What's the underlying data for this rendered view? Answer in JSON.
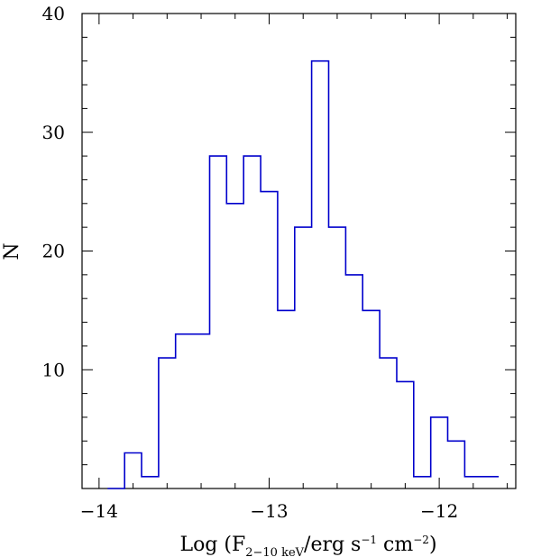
{
  "chart_data": {
    "type": "bar",
    "style": "step-histogram",
    "line_color": "#0000cc",
    "frame_color": "#000000",
    "bin_width": 0.1,
    "bin_left_edges": [
      -13.95,
      -13.85,
      -13.75,
      -13.65,
      -13.55,
      -13.45,
      -13.35,
      -13.25,
      -13.15,
      -13.05,
      -12.95,
      -12.85,
      -12.75,
      -12.65,
      -12.55,
      -12.45,
      -12.35,
      -12.25,
      -12.15,
      -12.05,
      -11.95,
      -11.85,
      -11.75
    ],
    "values": [
      0,
      3,
      1,
      11,
      13,
      13,
      28,
      24,
      28,
      25,
      15,
      22,
      36,
      22,
      18,
      15,
      11,
      9,
      1,
      6,
      4,
      1,
      1
    ],
    "x_range": [
      -14.1,
      -11.55
    ],
    "y_range": [
      0,
      40
    ],
    "x_ticks": [
      {
        "value": -14,
        "label": "−14"
      },
      {
        "value": -13,
        "label": "−13"
      },
      {
        "value": -12,
        "label": "−12"
      }
    ],
    "y_ticks": [
      {
        "value": 10,
        "label": "10"
      },
      {
        "value": 20,
        "label": "20"
      },
      {
        "value": 30,
        "label": "30"
      },
      {
        "value": 40,
        "label": "40"
      }
    ],
    "x_minor_step": 0.2,
    "y_minor_step": 2,
    "xlabel": {
      "main": "Log (F",
      "subscript": "2−10 keV",
      "middle": "/erg s",
      "sup1": "−1",
      "middle2": " cm",
      "sup2": "−2",
      "end": ")"
    },
    "ylabel": "N",
    "grid": false
  }
}
